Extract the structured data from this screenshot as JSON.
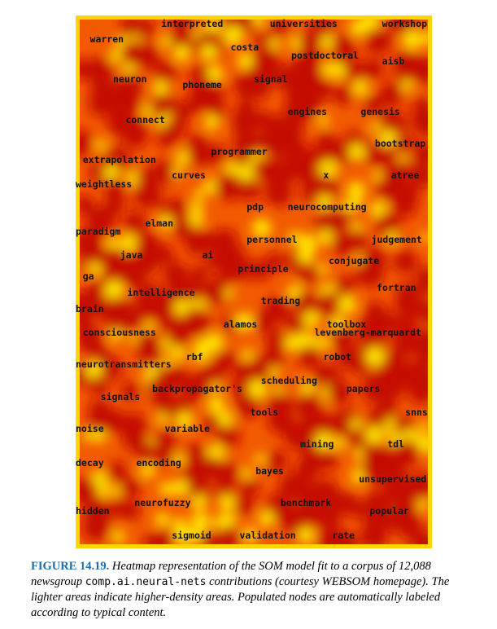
{
  "chart_data": {
    "type": "heatmap",
    "title": "",
    "xlabel": "",
    "ylabel": "",
    "grid": false,
    "colors": {
      "low": "#c41000",
      "mid": "#f25a00",
      "high": "#ffe800",
      "border": "#ffd400"
    },
    "node_labels": [
      {
        "text": "interpreted",
        "x": 0.24,
        "y": 0.015
      },
      {
        "text": "universities",
        "x": 0.545,
        "y": 0.015
      },
      {
        "text": "workshop",
        "x": 0.86,
        "y": 0.015
      },
      {
        "text": "warren",
        "x": 0.04,
        "y": 0.045
      },
      {
        "text": "costa",
        "x": 0.435,
        "y": 0.06
      },
      {
        "text": "postdoctoral",
        "x": 0.605,
        "y": 0.075
      },
      {
        "text": "aisb",
        "x": 0.86,
        "y": 0.085
      },
      {
        "text": "neuron",
        "x": 0.105,
        "y": 0.12
      },
      {
        "text": "signal",
        "x": 0.5,
        "y": 0.12
      },
      {
        "text": "phoneme",
        "x": 0.3,
        "y": 0.13
      },
      {
        "text": "engines",
        "x": 0.595,
        "y": 0.18
      },
      {
        "text": "genesis",
        "x": 0.8,
        "y": 0.18
      },
      {
        "text": "connect",
        "x": 0.14,
        "y": 0.195
      },
      {
        "text": "bootstrap",
        "x": 0.84,
        "y": 0.24
      },
      {
        "text": "programmer",
        "x": 0.38,
        "y": 0.255
      },
      {
        "text": "extrapolation",
        "x": 0.02,
        "y": 0.27
      },
      {
        "text": "curves",
        "x": 0.27,
        "y": 0.3
      },
      {
        "text": "x",
        "x": 0.695,
        "y": 0.3
      },
      {
        "text": "atree",
        "x": 0.885,
        "y": 0.3
      },
      {
        "text": "weightless",
        "x": 0.0,
        "y": 0.317
      },
      {
        "text": "pdp",
        "x": 0.48,
        "y": 0.36
      },
      {
        "text": "neurocomputing",
        "x": 0.595,
        "y": 0.36
      },
      {
        "text": "elman",
        "x": 0.195,
        "y": 0.39
      },
      {
        "text": "paradigm",
        "x": 0.0,
        "y": 0.405
      },
      {
        "text": "personnel",
        "x": 0.48,
        "y": 0.42
      },
      {
        "text": "judgement",
        "x": 0.83,
        "y": 0.42
      },
      {
        "text": "java",
        "x": 0.125,
        "y": 0.45
      },
      {
        "text": "ai",
        "x": 0.355,
        "y": 0.45
      },
      {
        "text": "conjugate",
        "x": 0.71,
        "y": 0.46
      },
      {
        "text": "principle",
        "x": 0.455,
        "y": 0.475
      },
      {
        "text": "ga",
        "x": 0.02,
        "y": 0.49
      },
      {
        "text": "fortran",
        "x": 0.845,
        "y": 0.51
      },
      {
        "text": "intelligence",
        "x": 0.145,
        "y": 0.52
      },
      {
        "text": "trading",
        "x": 0.52,
        "y": 0.535
      },
      {
        "text": "brain",
        "x": 0.0,
        "y": 0.55
      },
      {
        "text": "alamos",
        "x": 0.415,
        "y": 0.58
      },
      {
        "text": "toolbox",
        "x": 0.705,
        "y": 0.58
      },
      {
        "text": "consciousness",
        "x": 0.02,
        "y": 0.595
      },
      {
        "text": "levenberg-marquardt",
        "x": 0.67,
        "y": 0.595
      },
      {
        "text": "rbf",
        "x": 0.31,
        "y": 0.64
      },
      {
        "text": "robot",
        "x": 0.695,
        "y": 0.64
      },
      {
        "text": "neurotransmitters",
        "x": 0.0,
        "y": 0.655
      },
      {
        "text": "scheduling",
        "x": 0.52,
        "y": 0.685
      },
      {
        "text": "backpropagator's",
        "x": 0.215,
        "y": 0.7
      },
      {
        "text": "papers",
        "x": 0.76,
        "y": 0.7
      },
      {
        "text": "signals",
        "x": 0.07,
        "y": 0.715
      },
      {
        "text": "tools",
        "x": 0.49,
        "y": 0.745
      },
      {
        "text": "snns",
        "x": 0.925,
        "y": 0.745
      },
      {
        "text": "noise",
        "x": 0.0,
        "y": 0.775
      },
      {
        "text": "variable",
        "x": 0.25,
        "y": 0.775
      },
      {
        "text": "mining",
        "x": 0.63,
        "y": 0.805
      },
      {
        "text": "tdl",
        "x": 0.875,
        "y": 0.805
      },
      {
        "text": "decay",
        "x": 0.0,
        "y": 0.84
      },
      {
        "text": "encoding",
        "x": 0.17,
        "y": 0.84
      },
      {
        "text": "bayes",
        "x": 0.505,
        "y": 0.855
      },
      {
        "text": "unsupervised",
        "x": 0.795,
        "y": 0.87
      },
      {
        "text": "neurofuzzy",
        "x": 0.165,
        "y": 0.915
      },
      {
        "text": "benchmark",
        "x": 0.575,
        "y": 0.915
      },
      {
        "text": "hidden",
        "x": 0.0,
        "y": 0.93
      },
      {
        "text": "popular",
        "x": 0.825,
        "y": 0.93
      },
      {
        "text": "sigmoid",
        "x": 0.27,
        "y": 0.975
      },
      {
        "text": "validation",
        "x": 0.46,
        "y": 0.975
      },
      {
        "text": "rate",
        "x": 0.72,
        "y": 0.975
      }
    ]
  },
  "caption": {
    "label": "FIGURE 14.19.",
    "text_part1": "Heatmap representation of the SOM model fit to a corpus of 12,088 newsgroup",
    "newsgroup": "comp.ai.neural-nets",
    "text_part2": "contributions (courtesy WEBSOM homepage). The lighter areas indicate higher-density areas. Populated nodes are automatically labeled according to typical content."
  }
}
